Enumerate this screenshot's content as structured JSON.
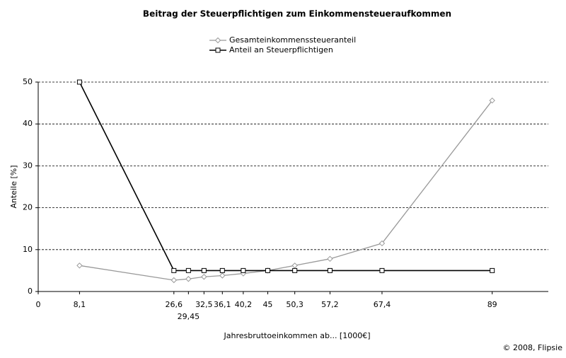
{
  "chart_data": {
    "type": "line",
    "title": "Beitrag der Steuerpflichtigen zum Einkommensteueraufkommen",
    "x_label": "Jahresbruttoeinkommen ab... [1000€]",
    "y_label": "Anteile [%]",
    "credit": "© 2008, Flipsie",
    "x": [
      8.1,
      26.6,
      29.45,
      32.5,
      36.1,
      40.2,
      45,
      50.3,
      57.2,
      67.4,
      89
    ],
    "series": [
      {
        "name": "Gesamteinkommenssteueranteil",
        "color": "#999999",
        "marker": "diamond",
        "values": [
          6.2,
          2.7,
          3.0,
          3.5,
          3.8,
          4.3,
          5.0,
          6.2,
          7.8,
          11.5,
          45.6
        ]
      },
      {
        "name": "Anteil an Steuerpflichtigen",
        "color": "#000000",
        "marker": "square",
        "values": [
          50,
          5,
          5,
          5,
          5,
          5,
          5,
          5,
          5,
          5,
          5
        ]
      }
    ],
    "xlim": [
      0,
      100
    ],
    "xticks": [
      0,
      {
        "value": 8.1,
        "label": "8,1"
      },
      {
        "value": 26.6,
        "label": "26,6"
      },
      {
        "value": 29.45,
        "label": "29,45"
      },
      {
        "value": 32.5,
        "label": "32,5"
      },
      {
        "value": 36.1,
        "label": "36,1"
      },
      {
        "value": 40.2,
        "label": "40,2"
      },
      45,
      {
        "value": 50.3,
        "label": "50,3"
      },
      {
        "value": 57.2,
        "label": "57,2"
      },
      {
        "value": 67.4,
        "label": "67,4"
      },
      89
    ],
    "ylim": [
      0,
      50
    ],
    "yticks": [
      0,
      10,
      20,
      30,
      40,
      50
    ],
    "grid": true
  }
}
